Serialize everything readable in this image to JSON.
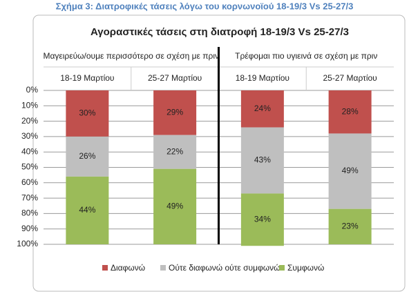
{
  "caption": "Σχήμα 3: Διατροφικές τάσεις λόγω του κορνωνοϊού 18-19/3 Vs 25-27/3",
  "chart_data": {
    "type": "stacked-bar",
    "title": "Αγοραστικές τάσεις στη διατροφή 18-19/3 Vs 25-27/3",
    "groups": [
      "Μαγειρεύω/ουμε περισσότερο σε σχέση με πριν",
      "Τρέφομαι πιο υγιεινά σε σχέση με πριν"
    ],
    "categories": [
      "18-19 Μαρτίου",
      "25-27 Μαρτίου",
      "18-19 Μαρτίου",
      "25-27 Μαρτίου"
    ],
    "series": [
      {
        "name": "Διαφωνώ",
        "color": "#c0504d",
        "values": [
          30,
          29,
          24,
          28
        ],
        "value_labels": [
          "30%",
          "29%",
          "24%",
          "28%"
        ]
      },
      {
        "name": "Ούτε διαφωνώ ούτε συμφωνώ",
        "color": "#bfbfbf",
        "values": [
          26,
          22,
          43,
          49
        ],
        "value_labels": [
          "26%",
          "22%",
          "43%",
          "49%"
        ]
      },
      {
        "name": "Συμφωνώ",
        "color": "#9bbb59",
        "values": [
          44,
          49,
          34,
          23
        ],
        "value_labels": [
          "44%",
          "49%",
          "34%",
          "23%"
        ]
      }
    ],
    "ylim": [
      0,
      100
    ],
    "y_inverted": true,
    "yticks": [
      {
        "value": 0,
        "label": "0%"
      },
      {
        "value": 10,
        "label": "10%"
      },
      {
        "value": 20,
        "label": "20%"
      },
      {
        "value": 30,
        "label": "30%"
      },
      {
        "value": 40,
        "label": "40%"
      },
      {
        "value": 50,
        "label": "50%"
      },
      {
        "value": 60,
        "label": "60%"
      },
      {
        "value": 70,
        "label": "70%"
      },
      {
        "value": 80,
        "label": "80%"
      },
      {
        "value": 90,
        "label": "90%"
      },
      {
        "value": 100,
        "label": "100%"
      }
    ],
    "grid": true,
    "legend": "bottom"
  }
}
